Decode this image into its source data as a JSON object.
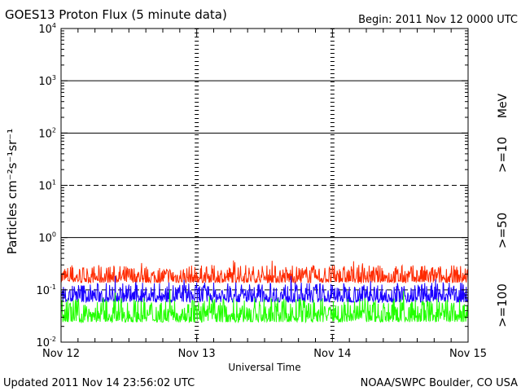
{
  "chart_data": {
    "type": "line",
    "title": "GOES13 Proton Flux (5 minute data)",
    "begin_label": "Begin: 2011 Nov 12 0000 UTC",
    "xlabel": "Universal Time",
    "ylabel": "Particles cm⁻²s⁻¹sr⁻¹",
    "yscale": "log",
    "ylim": [
      0.01,
      10000
    ],
    "xlim_days": [
      0,
      3
    ],
    "y_ticks": [
      {
        "base": "10",
        "exp": "-2",
        "value": 0.01
      },
      {
        "base": "10",
        "exp": "-1",
        "value": 0.1
      },
      {
        "base": "10",
        "exp": "0",
        "value": 1
      },
      {
        "base": "10",
        "exp": "1",
        "value": 10
      },
      {
        "base": "10",
        "exp": "2",
        "value": 100
      },
      {
        "base": "10",
        "exp": "3",
        "value": 1000
      },
      {
        "base": "10",
        "exp": "4",
        "value": 10000
      }
    ],
    "x_ticks": [
      {
        "label": "Nov 12",
        "day": 0
      },
      {
        "label": "Nov 13",
        "day": 1
      },
      {
        "label": "Nov 14",
        "day": 2
      },
      {
        "label": "Nov 15",
        "day": 3
      }
    ],
    "solid_gridlines": [
      1,
      100,
      1000
    ],
    "dashed_gridlines": [
      0.1,
      10
    ],
    "legend_unit": "MeV",
    "series": [
      {
        "name": ">=10",
        "color": "#ff2a00",
        "typical_range": [
          0.12,
          0.3
        ]
      },
      {
        "name": ">=50",
        "color": "#1a00ff",
        "typical_range": [
          0.05,
          0.14
        ]
      },
      {
        "name": ">=100",
        "color": "#22ff00",
        "typical_range": [
          0.02,
          0.07
        ]
      }
    ]
  },
  "footer": {
    "updated": "Updated 2011 Nov 14 23:56:02 UTC",
    "credit": "NOAA/SWPC Boulder, CO USA"
  }
}
